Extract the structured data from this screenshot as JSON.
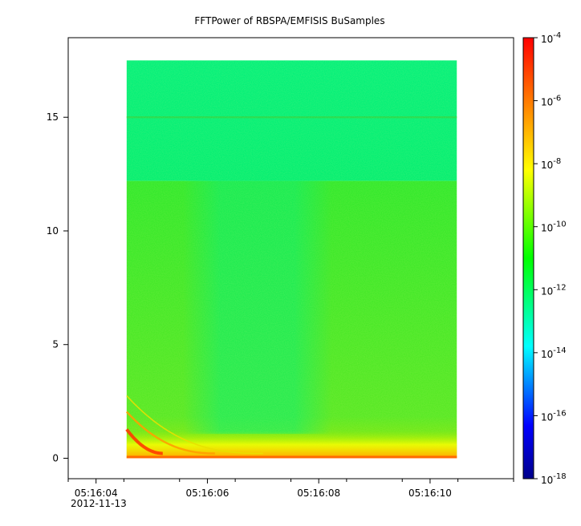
{
  "chart_data": {
    "type": "heatmap",
    "title": "FFTPower of RBSPA/EMFISIS  BuSamples",
    "xlabel": "",
    "ylabel": "",
    "date_label": "2012-11-13",
    "x_range": [
      "05:16:03.5",
      "05:16:11.5"
    ],
    "x_ticks": [
      "05:16:04",
      "05:16:06",
      "05:16:08",
      "05:16:10"
    ],
    "x_minor_ticks_per_major": 2,
    "data_x_range": [
      "05:16:04.55",
      "05:16:10.48"
    ],
    "ylim": [
      -0.9,
      18.5
    ],
    "y_ticks": [
      0,
      5,
      10,
      15
    ],
    "data_y_range": [
      0,
      17.5
    ],
    "grid": false,
    "colorbar": {
      "scale": "log",
      "range": [
        1e-18,
        0.0001
      ],
      "tick_labels": [
        {
          "base": "10",
          "exp": "-4"
        },
        {
          "base": "10",
          "exp": "-6"
        },
        {
          "base": "10",
          "exp": "-8"
        },
        {
          "base": "10",
          "exp": "-10"
        },
        {
          "base": "10",
          "exp": "-12"
        },
        {
          "base": "10",
          "exp": "-14"
        },
        {
          "base": "10",
          "exp": "-16"
        },
        {
          "base": "10",
          "exp": "-18"
        }
      ],
      "tick_exponents": [
        -4,
        -6,
        -8,
        -10,
        -12,
        -14,
        -16,
        -18
      ],
      "colormap": [
        "#00008b",
        "#0000ff",
        "#00ffff",
        "#00ff00",
        "#ffff00",
        "#ff8000",
        "#ff0000"
      ]
    },
    "features": {
      "background_power_exp_low_freq": -10.5,
      "background_power_exp_high_freq": -12,
      "band_edge_y": 12.2,
      "line_at_y": 15,
      "quiet_band_x": [
        "05:16:06.0",
        "05:16:07.8"
      ],
      "baseline_power_exp": -7
    }
  }
}
